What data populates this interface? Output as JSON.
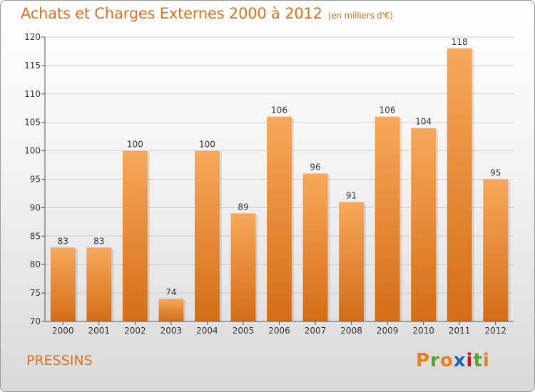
{
  "header": {
    "title": "Achats et Charges Externes 2000 à 2012",
    "unit": "(en milliers d'€)"
  },
  "footer": {
    "commune": "PRESSINS",
    "logo_text": "Proxiti"
  },
  "colors": {
    "accent": "#e0701a",
    "bar_top": "#f7a85a",
    "bar_bottom": "#d46d16",
    "logo_letters": [
      "#e8821e",
      "#5aa02c",
      "#e8821e",
      "#1e64b4",
      "#c8102e",
      "#5aa02c",
      "#e8821e"
    ]
  },
  "chart_data": {
    "type": "bar",
    "categories": [
      "2000",
      "2001",
      "2002",
      "2003",
      "2004",
      "2005",
      "2006",
      "2007",
      "2008",
      "2009",
      "2010",
      "2011",
      "2012"
    ],
    "values": [
      83,
      83,
      100,
      74,
      100,
      89,
      106,
      96,
      91,
      106,
      104,
      118,
      95
    ],
    "title": "Achats et Charges Externes 2000 à 2012",
    "xlabel": "",
    "ylabel": "",
    "ylim": [
      70,
      120
    ],
    "yticks": [
      70,
      75,
      80,
      85,
      90,
      95,
      100,
      105,
      110,
      115,
      120
    ],
    "grid": true,
    "data_labels": true
  }
}
